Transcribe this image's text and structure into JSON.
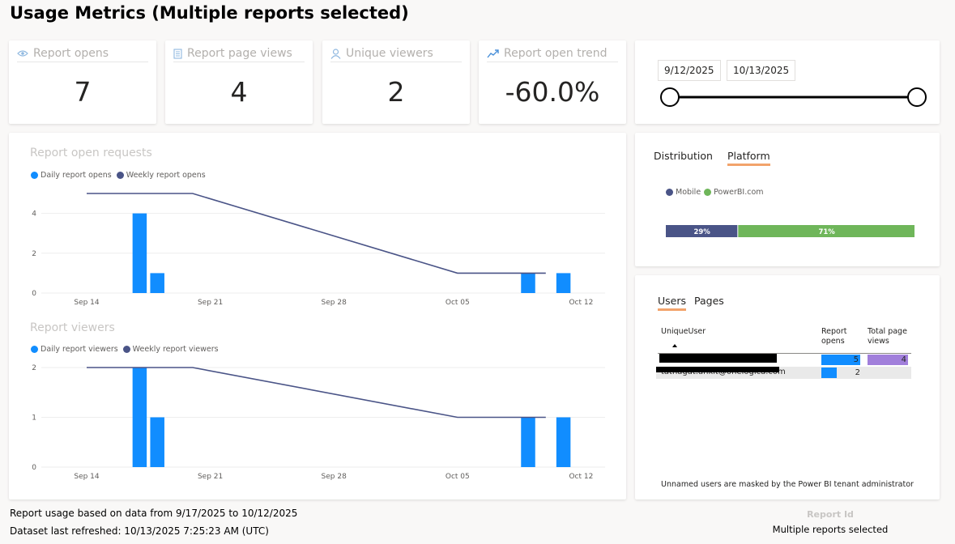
{
  "page": {
    "title": "Usage Metrics (Multiple reports selected)"
  },
  "kpis": [
    {
      "icon": "eye-icon",
      "label": "Report opens",
      "value": "7"
    },
    {
      "icon": "document-icon",
      "label": "Report page views",
      "value": "4"
    },
    {
      "icon": "person-icon",
      "label": "Unique viewers",
      "value": "2"
    },
    {
      "icon": "trend-up-icon",
      "label": "Report open trend",
      "value": "-60.0%"
    }
  ],
  "date_slicer": {
    "start": "9/12/2025",
    "end": "10/13/2025"
  },
  "chart_data": [
    {
      "type": "bar",
      "title": "Report open requests",
      "x_ticks": [
        "Sep 14",
        "Sep 21",
        "Sep 28",
        "Oct 05",
        "Oct 12"
      ],
      "y_ticks": [
        "0",
        "2",
        "4"
      ],
      "ylim": [
        0,
        5
      ],
      "series": [
        {
          "name": "Daily report opens",
          "type": "bar",
          "color": "#118dff",
          "points": [
            {
              "x": "2025-09-17",
              "y": 4
            },
            {
              "x": "2025-09-18",
              "y": 1
            },
            {
              "x": "2025-10-09",
              "y": 1
            },
            {
              "x": "2025-10-11",
              "y": 1
            }
          ]
        },
        {
          "name": "Weekly report opens",
          "type": "line",
          "color": "#4a5487",
          "points": [
            {
              "x": "2025-09-14",
              "y": 5
            },
            {
              "x": "2025-09-20",
              "y": 5
            },
            {
              "x": "2025-10-05",
              "y": 1
            },
            {
              "x": "2025-10-10",
              "y": 1
            }
          ]
        }
      ]
    },
    {
      "type": "bar",
      "title": "Report viewers",
      "x_ticks": [
        "Sep 14",
        "Sep 21",
        "Sep 28",
        "Oct 05",
        "Oct 12"
      ],
      "y_ticks": [
        "0",
        "1",
        "2"
      ],
      "ylim": [
        0,
        2
      ],
      "series": [
        {
          "name": "Daily report viewers",
          "type": "bar",
          "color": "#118dff",
          "points": [
            {
              "x": "2025-09-17",
              "y": 2
            },
            {
              "x": "2025-09-18",
              "y": 1
            },
            {
              "x": "2025-10-09",
              "y": 1
            },
            {
              "x": "2025-10-11",
              "y": 1
            }
          ]
        },
        {
          "name": "Weekly report viewers",
          "type": "line",
          "color": "#4a5487",
          "points": [
            {
              "x": "2025-09-14",
              "y": 2
            },
            {
              "x": "2025-09-20",
              "y": 2
            },
            {
              "x": "2025-10-05",
              "y": 1
            },
            {
              "x": "2025-10-10",
              "y": 1
            }
          ]
        }
      ]
    },
    {
      "type": "bar",
      "title": "",
      "stacked": true,
      "series": [
        {
          "name": "Mobile",
          "value": 29,
          "label": "29%",
          "color": "#4a5487"
        },
        {
          "name": "PowerBI.com",
          "value": 71,
          "label": "71%",
          "color": "#6fb65a"
        }
      ]
    }
  ],
  "platform_card": {
    "tabs": [
      {
        "label": "Distribution"
      },
      {
        "label": "Platform",
        "active": true
      }
    ]
  },
  "users_card": {
    "tabs": [
      {
        "label": "Users",
        "active": true
      },
      {
        "label": "Pages"
      }
    ],
    "columns": [
      "UniqueUser",
      "Report opens",
      "Total page views"
    ],
    "rows": [
      {
        "user": "",
        "opens": "5",
        "opens_value": 5,
        "views": "4",
        "views_value": 4
      },
      {
        "user": "tathagat.ankit@onelogica.com",
        "opens": "2",
        "opens_value": 2,
        "views": "",
        "views_value": 0
      }
    ],
    "bar_colors": {
      "opens": "#118dff",
      "views": "#a17fdb"
    },
    "footnote": "Unnamed users are masked by the Power BI tenant administrator"
  },
  "footer": {
    "usage_text": "Report usage based on data from 9/17/2025 to 10/12/2025",
    "refresh_text": "Dataset last refreshed: 10/13/2025 7:25:23 AM (UTC)",
    "report_id_label": "Report Id",
    "report_id_value": "Multiple reports selected"
  }
}
